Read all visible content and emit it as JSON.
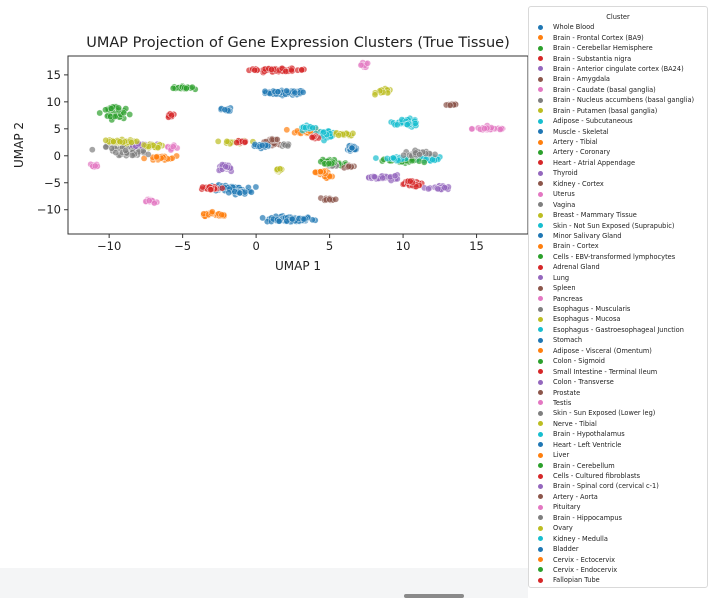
{
  "chart_data": {
    "type": "scatter",
    "title": "UMAP Projection of Gene Expression Clusters (True Tissue)",
    "xlabel": "UMAP 1",
    "ylabel": "UMAP 2",
    "xlim": [
      -12.8,
      18.5
    ],
    "ylim": [
      -14.5,
      18.5
    ],
    "xticks": [
      -10,
      -5,
      0,
      5,
      10,
      15
    ],
    "yticks": [
      -10,
      -5,
      0,
      5,
      10,
      15
    ],
    "grid": false,
    "legend": {
      "title": "Cluster",
      "placement": "outside-right"
    },
    "series": [
      {
        "name": "Whole Blood",
        "color": "#1f77b4",
        "clusters": [
          {
            "x": 2.0,
            "y": 11.7,
            "sx": 1.5,
            "sy": 0.45,
            "n": 70
          },
          {
            "x": 2.3,
            "y": -11.8,
            "sx": 1.8,
            "sy": 0.6,
            "n": 80
          }
        ]
      },
      {
        "name": "Brain - Frontal Cortex (BA9)",
        "color": "#ff7f0e",
        "clusters": [
          {
            "x": 3.5,
            "y": 4.5,
            "sx": 0.9,
            "sy": 0.6,
            "n": 30
          },
          {
            "x": -3.2,
            "y": -10.8,
            "sx": 0.6,
            "sy": 0.4,
            "n": 15
          }
        ]
      },
      {
        "name": "Brain - Cerebellar Hemisphere",
        "color": "#2ca02c",
        "clusters": [
          {
            "x": -5.0,
            "y": 12.6,
            "sx": 0.7,
            "sy": 0.3,
            "n": 25
          },
          {
            "x": -9.6,
            "y": 7.8,
            "sx": 0.8,
            "sy": 1.2,
            "n": 30
          }
        ]
      },
      {
        "name": "Brain - Substantia nigra",
        "color": "#d62728",
        "clusters": [
          {
            "x": 1.5,
            "y": 15.9,
            "sx": 2.2,
            "sy": 0.3,
            "n": 60
          }
        ]
      },
      {
        "name": "Brain - Anterior cingulate cortex (BA24)",
        "color": "#9467bd",
        "clusters": [
          {
            "x": -2.2,
            "y": -2.3,
            "sx": 0.5,
            "sy": 0.5,
            "n": 15
          }
        ]
      },
      {
        "name": "Brain - Amygdala",
        "color": "#8c564b",
        "clusters": [
          {
            "x": 1.0,
            "y": 2.8,
            "sx": 0.5,
            "sy": 0.3,
            "n": 10
          },
          {
            "x": 13.3,
            "y": 9.5,
            "sx": 0.5,
            "sy": 0.3,
            "n": 10
          }
        ]
      },
      {
        "name": "Brain - Caudate (basal ganglia)",
        "color": "#e377c2",
        "clusters": [
          {
            "x": 16.0,
            "y": 5.0,
            "sx": 1.4,
            "sy": 0.4,
            "n": 30
          },
          {
            "x": 7.3,
            "y": 16.8,
            "sx": 0.4,
            "sy": 0.5,
            "n": 10
          }
        ]
      },
      {
        "name": "Brain - Nucleus accumbens (basal ganglia)",
        "color": "#7f7f7f",
        "clusters": [
          {
            "x": -9.0,
            "y": 1.5,
            "sx": 1.8,
            "sy": 0.9,
            "n": 40
          }
        ]
      },
      {
        "name": "Brain - Putamen (basal ganglia)",
        "color": "#bcbd22",
        "clusters": [
          {
            "x": 8.7,
            "y": 11.9,
            "sx": 0.6,
            "sy": 0.5,
            "n": 20
          },
          {
            "x": -1.3,
            "y": 2.5,
            "sx": 1.0,
            "sy": 0.35,
            "n": 25
          }
        ]
      },
      {
        "name": "Adipose - Subcutaneous",
        "color": "#17becf",
        "clusters": [
          {
            "x": 10.2,
            "y": 6.3,
            "sx": 1.0,
            "sy": 0.6,
            "n": 35
          },
          {
            "x": 4.8,
            "y": 4.1,
            "sx": 0.7,
            "sy": 0.7,
            "n": 25
          }
        ]
      },
      {
        "name": "Muscle - Skeletal",
        "color": "#1f77b4",
        "clusters": [
          {
            "x": -2.0,
            "y": -6.0,
            "sx": 1.4,
            "sy": 0.6,
            "n": 40
          }
        ]
      },
      {
        "name": "Artery - Tibial",
        "color": "#ff7f0e",
        "clusters": [
          {
            "x": -6.5,
            "y": -0.5,
            "sx": 1.2,
            "sy": 0.5,
            "n": 25
          }
        ]
      },
      {
        "name": "Artery - Coronary",
        "color": "#2ca02c",
        "clusters": [
          {
            "x": 5.5,
            "y": -1.5,
            "sx": 0.8,
            "sy": 0.4,
            "n": 20
          }
        ]
      },
      {
        "name": "Heart - Atrial Appendage",
        "color": "#d62728",
        "clusters": [
          {
            "x": -3.0,
            "y": -6.0,
            "sx": 0.9,
            "sy": 0.4,
            "n": 25
          },
          {
            "x": 10.5,
            "y": -5.0,
            "sx": 0.8,
            "sy": 0.4,
            "n": 20
          },
          {
            "x": -5.8,
            "y": 7.5,
            "sx": 0.3,
            "sy": 0.5,
            "n": 12
          }
        ]
      },
      {
        "name": "Thyroid",
        "color": "#9467bd",
        "clusters": [
          {
            "x": 12.5,
            "y": -6.0,
            "sx": 0.8,
            "sy": 0.5,
            "n": 25
          },
          {
            "x": -7.5,
            "y": 2.0,
            "sx": 0.8,
            "sy": 0.4,
            "n": 20
          }
        ]
      },
      {
        "name": "Kidney - Cortex",
        "color": "#8c564b",
        "clusters": [
          {
            "x": 5.0,
            "y": -8.0,
            "sx": 0.5,
            "sy": 0.3,
            "n": 12
          }
        ]
      },
      {
        "name": "Uterus",
        "color": "#e377c2",
        "clusters": [
          {
            "x": -7.3,
            "y": -8.3,
            "sx": 0.3,
            "sy": 0.4,
            "n": 10
          }
        ]
      },
      {
        "name": "Vagina",
        "color": "#7f7f7f",
        "clusters": [
          {
            "x": 5.2,
            "y": -1.8,
            "sx": 0.5,
            "sy": 0.3,
            "n": 12
          }
        ]
      },
      {
        "name": "Breast - Mammary Tissue",
        "color": "#bcbd22",
        "clusters": [
          {
            "x": -9.5,
            "y": 2.6,
            "sx": 1.3,
            "sy": 0.4,
            "n": 30
          },
          {
            "x": 6.0,
            "y": 4.0,
            "sx": 0.7,
            "sy": 0.3,
            "n": 15
          }
        ]
      },
      {
        "name": "Skin - Not Sun Exposed (Suprapubic)",
        "color": "#17becf",
        "clusters": [
          {
            "x": 11.5,
            "y": -0.5,
            "sx": 1.0,
            "sy": 0.6,
            "n": 30
          }
        ]
      },
      {
        "name": "Minor Salivary Gland",
        "color": "#1f77b4",
        "clusters": [
          {
            "x": 6.5,
            "y": 1.2,
            "sx": 0.5,
            "sy": 0.3,
            "n": 12
          },
          {
            "x": -2.0,
            "y": 8.5,
            "sx": 0.4,
            "sy": 0.4,
            "n": 12
          }
        ]
      },
      {
        "name": "Brain - Cortex",
        "color": "#ff7f0e",
        "clusters": [
          {
            "x": 4.5,
            "y": -3.2,
            "sx": 0.6,
            "sy": 0.4,
            "n": 15
          }
        ]
      },
      {
        "name": "Cells - EBV-transformed lymphocytes",
        "color": "#2ca02c",
        "clusters": [
          {
            "x": 10.0,
            "y": -1.0,
            "sx": 1.4,
            "sy": 0.5,
            "n": 30
          }
        ]
      },
      {
        "name": "Adrenal Gland",
        "color": "#d62728",
        "clusters": [
          {
            "x": 4.0,
            "y": 3.5,
            "sx": 0.5,
            "sy": 0.4,
            "n": 12
          }
        ]
      },
      {
        "name": "Lung",
        "color": "#9467bd",
        "clusters": [
          {
            "x": 9.0,
            "y": -4.0,
            "sx": 0.8,
            "sy": 0.5,
            "n": 20
          }
        ]
      },
      {
        "name": "Spleen",
        "color": "#8c564b",
        "clusters": [
          {
            "x": 1.2,
            "y": 2.2,
            "sx": 0.4,
            "sy": 0.3,
            "n": 10
          }
        ]
      },
      {
        "name": "Pancreas",
        "color": "#e377c2",
        "clusters": [
          {
            "x": -11.0,
            "y": -1.8,
            "sx": 0.3,
            "sy": 0.4,
            "n": 10
          }
        ]
      },
      {
        "name": "Esophagus - Muscularis",
        "color": "#7f7f7f",
        "clusters": [
          {
            "x": -8.5,
            "y": 0.5,
            "sx": 1.2,
            "sy": 0.5,
            "n": 25
          }
        ]
      },
      {
        "name": "Esophagus - Mucosa",
        "color": "#bcbd22",
        "clusters": [
          {
            "x": 1.5,
            "y": -2.8,
            "sx": 0.2,
            "sy": 0.5,
            "n": 8
          }
        ]
      },
      {
        "name": "Esophagus - Gastroesophageal Junction",
        "color": "#17becf",
        "clusters": [
          {
            "x": 9.5,
            "y": -0.5,
            "sx": 1.0,
            "sy": 0.4,
            "n": 20
          }
        ]
      },
      {
        "name": "Stomach",
        "color": "#1f77b4",
        "clusters": [
          {
            "x": 0.5,
            "y": 1.8,
            "sx": 0.8,
            "sy": 0.3,
            "n": 15
          }
        ]
      },
      {
        "name": "Adipose - Visceral (Omentum)",
        "color": "#ff7f0e",
        "clusters": [
          {
            "x": -2.5,
            "y": -11.0,
            "sx": 0.4,
            "sy": 0.3,
            "n": 10
          }
        ]
      },
      {
        "name": "Colon - Sigmoid",
        "color": "#2ca02c",
        "clusters": [
          {
            "x": 5.0,
            "y": -1.0,
            "sx": 0.6,
            "sy": 0.4,
            "n": 15
          }
        ]
      },
      {
        "name": "Small Intestine - Terminal Ileum",
        "color": "#d62728",
        "clusters": [
          {
            "x": 11.0,
            "y": -5.5,
            "sx": 0.5,
            "sy": 0.3,
            "n": 12
          }
        ]
      },
      {
        "name": "Colon - Transverse",
        "color": "#9467bd",
        "clusters": [
          {
            "x": -2.0,
            "y": -2.0,
            "sx": 0.5,
            "sy": 0.4,
            "n": 12
          }
        ]
      },
      {
        "name": "Prostate",
        "color": "#8c564b",
        "clusters": [
          {
            "x": 6.5,
            "y": -2.0,
            "sx": 0.4,
            "sy": 0.3,
            "n": 10
          }
        ]
      },
      {
        "name": "Testis",
        "color": "#e377c2",
        "clusters": [
          {
            "x": -7.0,
            "y": -8.5,
            "sx": 0.3,
            "sy": 0.3,
            "n": 8
          }
        ]
      },
      {
        "name": "Skin - Sun Exposed (Lower leg)",
        "color": "#7f7f7f",
        "clusters": [
          {
            "x": 11.0,
            "y": 0.5,
            "sx": 1.0,
            "sy": 0.5,
            "n": 25
          }
        ]
      },
      {
        "name": "Nerve - Tibial",
        "color": "#bcbd22",
        "clusters": [
          {
            "x": -7.0,
            "y": 1.8,
            "sx": 0.8,
            "sy": 0.4,
            "n": 20
          }
        ]
      },
      {
        "name": "Brain - Hypothalamus",
        "color": "#17becf",
        "clusters": [
          {
            "x": 3.5,
            "y": 5.2,
            "sx": 0.6,
            "sy": 0.4,
            "n": 15
          }
        ]
      },
      {
        "name": "Heart - Left Ventricle",
        "color": "#1f77b4",
        "clusters": [
          {
            "x": -1.0,
            "y": -6.8,
            "sx": 0.8,
            "sy": 0.4,
            "n": 20
          }
        ]
      },
      {
        "name": "Liver",
        "color": "#ff7f0e",
        "clusters": [
          {
            "x": 4.8,
            "y": -3.8,
            "sx": 0.3,
            "sy": 0.3,
            "n": 10
          }
        ]
      },
      {
        "name": "Brain - Cerebellum",
        "color": "#2ca02c",
        "clusters": [
          {
            "x": -9.8,
            "y": 8.8,
            "sx": 0.5,
            "sy": 0.5,
            "n": 15
          }
        ]
      },
      {
        "name": "Cells - Cultured fibroblasts",
        "color": "#d62728",
        "clusters": [
          {
            "x": -1.0,
            "y": 2.5,
            "sx": 0.4,
            "sy": 0.3,
            "n": 12
          }
        ]
      },
      {
        "name": "Brain - Spinal cord (cervical c-1)",
        "color": "#9467bd",
        "clusters": [
          {
            "x": 8.0,
            "y": -4.0,
            "sx": 0.5,
            "sy": 0.3,
            "n": 12
          }
        ]
      },
      {
        "name": "Artery - Aorta",
        "color": "#8c564b",
        "clusters": [
          {
            "x": 1.2,
            "y": 3.0,
            "sx": 0.3,
            "sy": 0.3,
            "n": 8
          }
        ]
      },
      {
        "name": "Pituitary",
        "color": "#e377c2",
        "clusters": [
          {
            "x": -5.8,
            "y": 1.5,
            "sx": 0.4,
            "sy": 0.4,
            "n": 10
          }
        ]
      },
      {
        "name": "Brain - Hippocampus",
        "color": "#7f7f7f",
        "clusters": [
          {
            "x": 2.0,
            "y": 2.0,
            "sx": 0.4,
            "sy": 0.3,
            "n": 10
          }
        ]
      },
      {
        "name": "Ovary",
        "color": "#bcbd22",
        "clusters": [
          {
            "x": 1.5,
            "y": -2.5,
            "sx": 0.2,
            "sy": 0.4,
            "n": 8
          }
        ]
      },
      {
        "name": "Kidney - Medulla",
        "color": "#17becf",
        "clusters": [
          {
            "x": 10.5,
            "y": 5.8,
            "sx": 0.5,
            "sy": 0.4,
            "n": 12
          }
        ]
      },
      {
        "name": "Bladder",
        "color": "#1f77b4",
        "clusters": [
          {
            "x": 6.5,
            "y": 1.5,
            "sx": 0.3,
            "sy": 0.3,
            "n": 8
          }
        ]
      },
      {
        "name": "Cervix - Ectocervix",
        "color": "#ff7f0e",
        "clusters": [
          {
            "x": 4.5,
            "y": -3.0,
            "sx": 0.4,
            "sy": 0.3,
            "n": 10
          }
        ]
      },
      {
        "name": "Cervix - Endocervix",
        "color": "#2ca02c",
        "clusters": [
          {
            "x": 5.0,
            "y": -1.5,
            "sx": 0.3,
            "sy": 0.3,
            "n": 8
          }
        ]
      },
      {
        "name": "Fallopian Tube",
        "color": "#d62728",
        "clusters": [
          {
            "x": 10.5,
            "y": -4.8,
            "sx": 0.3,
            "sy": 0.3,
            "n": 8
          }
        ]
      }
    ]
  }
}
